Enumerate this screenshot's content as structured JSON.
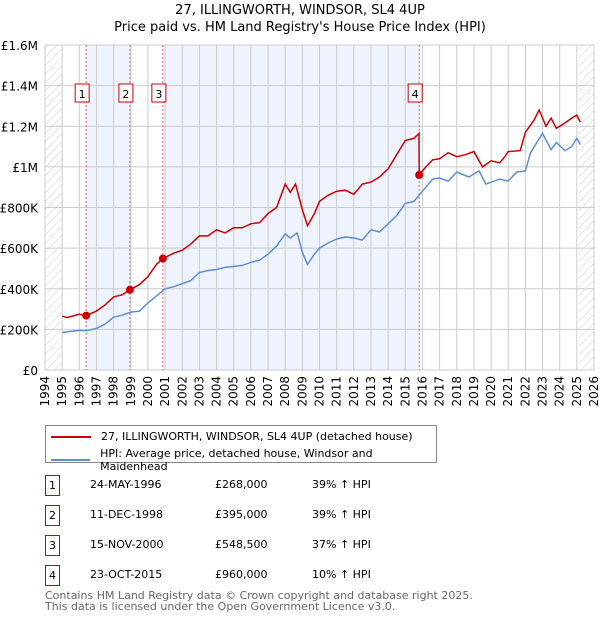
{
  "title_line1": "27, ILLINGWORTH, WINDSOR, SL4 4UP",
  "title_line2": "Price paid vs. HM Land Registry's House Price Index (HPI)",
  "colors": {
    "property": "#cc0000",
    "hpi": "#5b8fd4",
    "shade": "#eef3fd"
  },
  "chart_data": {
    "type": "line",
    "xlim": [
      1994,
      2026
    ],
    "ylim": [
      0,
      1600000
    ],
    "x_ticks": [
      "1994",
      "1995",
      "1996",
      "1997",
      "1998",
      "1999",
      "2000",
      "2001",
      "2002",
      "2003",
      "2004",
      "2005",
      "2006",
      "2007",
      "2008",
      "2009",
      "2010",
      "2011",
      "2012",
      "2013",
      "2014",
      "2015",
      "2016",
      "2017",
      "2018",
      "2019",
      "2020",
      "2021",
      "2022",
      "2023",
      "2024",
      "2025",
      "2026"
    ],
    "y_ticks": [
      {
        "v": 0,
        "label": "£0"
      },
      {
        "v": 200000,
        "label": "£200K"
      },
      {
        "v": 400000,
        "label": "£400K"
      },
      {
        "v": 600000,
        "label": "£600K"
      },
      {
        "v": 800000,
        "label": "£800K"
      },
      {
        "v": 1000000,
        "label": "£1M"
      },
      {
        "v": 1200000,
        "label": "£1.2M"
      },
      {
        "v": 1400000,
        "label": "£1.4M"
      },
      {
        "v": 1600000,
        "label": "£1.6M"
      }
    ],
    "series": [
      {
        "name": "27, ILLINGWORTH, WINDSOR, SL4 4UP (detached house)",
        "color": "#cc0000",
        "x": [
          1995,
          1995.3,
          1996,
          1996.4,
          1997,
          1997.5,
          1998,
          1998.5,
          1998.95,
          1999.5,
          2000,
          2000.5,
          2000.87,
          2001.5,
          2002,
          2002.5,
          2003,
          2003.5,
          2004,
          2004.5,
          2005,
          2005.5,
          2006,
          2006.5,
          2007,
          2007.5,
          2008,
          2008.3,
          2008.6,
          2009,
          2009.3,
          2009.7,
          2010,
          2010.5,
          2011,
          2011.5,
          2012,
          2012.5,
          2013,
          2013.5,
          2014,
          2014.5,
          2015,
          2015.5,
          2015.8,
          2015.81,
          2016.2,
          2016.6,
          2017,
          2017.5,
          2018,
          2018.5,
          2019,
          2019.5,
          2020,
          2020.5,
          2020.8,
          2021,
          2021.7,
          2022,
          2022.5,
          2022.8,
          2023.2,
          2023.5,
          2023.8,
          2024.2,
          2024.7,
          2025,
          2025.2
        ],
        "y": [
          265,
          258,
          275,
          268,
          290,
          320,
          360,
          370,
          395,
          420,
          460,
          520,
          548.5,
          575,
          590,
          620,
          660,
          660,
          690,
          675,
          700,
          700,
          720,
          725,
          770,
          800,
          915,
          875,
          915,
          790,
          710,
          770,
          830,
          860,
          880,
          885,
          865,
          915,
          925,
          950,
          990,
          1060,
          1130,
          1140,
          1165,
          960,
          1000,
          1035,
          1040,
          1070,
          1050,
          1060,
          1075,
          1000,
          1030,
          1020,
          1050,
          1075,
          1080,
          1170,
          1230,
          1280,
          1200,
          1240,
          1190,
          1210,
          1240,
          1255,
          1220
        ]
      },
      {
        "name": "HPI: Average price, detached house, Windsor and Maidenhead",
        "color": "#5b8fd4",
        "x": [
          1995,
          1996,
          1996.4,
          1997,
          1997.5,
          1998,
          1998.5,
          1999,
          1999.5,
          2000,
          2000.5,
          2001,
          2001.5,
          2002,
          2002.5,
          2003,
          2003.5,
          2004,
          2004.5,
          2005,
          2005.5,
          2006,
          2006.5,
          2007,
          2007.5,
          2008,
          2008.3,
          2008.7,
          2009,
          2009.3,
          2009.7,
          2010,
          2010.5,
          2011,
          2011.5,
          2012,
          2012.5,
          2013,
          2013.5,
          2014,
          2014.5,
          2015,
          2015.5,
          2015.8,
          2016.2,
          2016.6,
          2017,
          2017.5,
          2018,
          2018.7,
          2019.3,
          2019.7,
          2020.5,
          2021,
          2021.5,
          2022,
          2022.3,
          2023,
          2023.5,
          2023.8,
          2024.3,
          2024.7,
          2025,
          2025.2
        ],
        "y": [
          185,
          195,
          193,
          205,
          225,
          260,
          270,
          285,
          290,
          330,
          365,
          400,
          410,
          425,
          440,
          480,
          490,
          495,
          505,
          510,
          515,
          530,
          540,
          570,
          610,
          670,
          650,
          675,
          580,
          520,
          570,
          600,
          625,
          645,
          655,
          650,
          640,
          690,
          680,
          720,
          760,
          820,
          830,
          860,
          900,
          940,
          945,
          930,
          975,
          950,
          980,
          915,
          940,
          930,
          975,
          980,
          1070,
          1165,
          1085,
          1120,
          1080,
          1100,
          1140,
          1110
        ]
      }
    ],
    "sales": [
      {
        "id": "1",
        "x": 1996.4,
        "y": 268
      },
      {
        "id": "2",
        "x": 1998.95,
        "y": 395
      },
      {
        "id": "3",
        "x": 2000.87,
        "y": 548.5
      },
      {
        "id": "4",
        "x": 2015.81,
        "y": 960
      }
    ],
    "y_units": "thousands GBP",
    "grid": true
  },
  "legend": {
    "property": "27, ILLINGWORTH, WINDSOR, SL4 4UP (detached house)",
    "hpi": "HPI: Average price, detached house, Windsor and Maidenhead"
  },
  "transactions": [
    {
      "id": "1",
      "date": "24-MAY-1996",
      "price": "£268,000",
      "hpi": "39% ↑ HPI"
    },
    {
      "id": "2",
      "date": "11-DEC-1998",
      "price": "£395,000",
      "hpi": "39% ↑ HPI"
    },
    {
      "id": "3",
      "date": "15-NOV-2000",
      "price": "£548,500",
      "hpi": "37% ↑ HPI"
    },
    {
      "id": "4",
      "date": "23-OCT-2015",
      "price": "£960,000",
      "hpi": "10% ↑ HPI"
    }
  ],
  "footer": {
    "line1": "Contains HM Land Registry data © Crown copyright and database right 2025.",
    "line2": "This data is licensed under the Open Government Licence v3.0."
  }
}
